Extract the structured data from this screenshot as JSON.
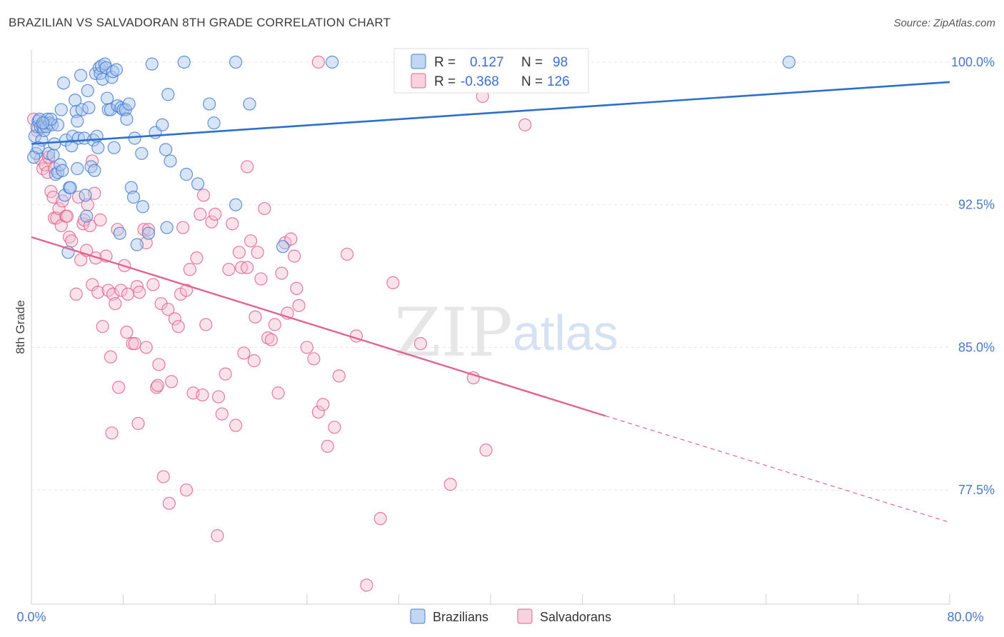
{
  "header": {
    "title": "BRAZILIAN VS SALVADORAN 8TH GRADE CORRELATION CHART",
    "source": "Source: ZipAtlas.com"
  },
  "watermark": {
    "zip": "ZIP",
    "atlas": "atlas"
  },
  "legend_top": {
    "r_label": "R =",
    "n_label": "N =",
    "rows": [
      {
        "r": "0.127",
        "n": "98",
        "color": "#7aa5e0"
      },
      {
        "r": "-0.368",
        "n": "126",
        "color": "#f0a6bf"
      }
    ]
  },
  "colors": {
    "blue": "#4a7fd0",
    "blue_fill": "#a9c5ee",
    "pink": "#e0648f",
    "pink_fill": "#f5bfd1"
  },
  "chart_data": {
    "type": "scatter",
    "title": "BRAZILIAN VS SALVADORAN 8TH GRADE CORRELATION CHART",
    "xlabel": "",
    "ylabel": "8th Grade",
    "xlim": [
      0,
      80
    ],
    "ylim": [
      71.5,
      100.9
    ],
    "x_tick_labels": [
      "0.0%",
      "80.0%"
    ],
    "y_ticks": [
      {
        "value": 100.0,
        "label": "100.0%"
      },
      {
        "value": 92.5,
        "label": "92.5%"
      },
      {
        "value": 85.0,
        "label": "85.0%"
      },
      {
        "value": 77.5,
        "label": "77.5%"
      }
    ],
    "series": [
      {
        "name": "Brazilians",
        "r": 0.127,
        "n": 98,
        "trend": {
          "x": [
            0,
            80
          ],
          "y": [
            95.7,
            98.95
          ]
        },
        "points": [
          [
            0.3,
            96.1
          ],
          [
            0.4,
            95.2
          ],
          [
            0.5,
            96.6
          ],
          [
            0.6,
            96.9
          ],
          [
            0.7,
            97.0
          ],
          [
            0.8,
            96.6
          ],
          [
            0.9,
            95.9
          ],
          [
            1.0,
            96.6
          ],
          [
            1.1,
            96.4
          ],
          [
            1.2,
            96.8
          ],
          [
            1.3,
            96.6
          ],
          [
            1.4,
            97.0
          ],
          [
            1.5,
            95.2
          ],
          [
            1.6,
            96.8
          ],
          [
            1.8,
            96.7
          ],
          [
            1.9,
            95.1
          ],
          [
            2.1,
            94.1
          ],
          [
            2.3,
            94.2
          ],
          [
            2.3,
            96.7
          ],
          [
            2.5,
            94.6
          ],
          [
            2.6,
            97.5
          ],
          [
            2.7,
            94.3
          ],
          [
            2.8,
            98.9
          ],
          [
            2.9,
            93.0
          ],
          [
            3.0,
            95.9
          ],
          [
            3.2,
            90.0
          ],
          [
            3.3,
            93.4
          ],
          [
            3.4,
            93.4
          ],
          [
            3.5,
            95.6
          ],
          [
            3.6,
            96.1
          ],
          [
            3.8,
            98.0
          ],
          [
            3.9,
            97.4
          ],
          [
            4.0,
            94.4
          ],
          [
            4.1,
            96.0
          ],
          [
            4.3,
            99.3
          ],
          [
            4.4,
            97.5
          ],
          [
            4.6,
            96.0
          ],
          [
            4.7,
            93.0
          ],
          [
            4.8,
            91.9
          ],
          [
            4.9,
            98.5
          ],
          [
            5.0,
            97.6
          ],
          [
            5.2,
            94.5
          ],
          [
            5.4,
            95.9
          ],
          [
            5.5,
            94.3
          ],
          [
            5.6,
            99.4
          ],
          [
            5.7,
            96.1
          ],
          [
            5.8,
            95.5
          ],
          [
            5.9,
            99.7
          ],
          [
            6.0,
            99.4
          ],
          [
            6.1,
            99.8
          ],
          [
            6.2,
            99.1
          ],
          [
            6.4,
            99.9
          ],
          [
            6.5,
            99.7
          ],
          [
            6.6,
            98.1
          ],
          [
            6.7,
            97.5
          ],
          [
            6.9,
            97.5
          ],
          [
            7.0,
            99.2
          ],
          [
            7.1,
            99.5
          ],
          [
            7.2,
            95.5
          ],
          [
            7.4,
            99.6
          ],
          [
            7.5,
            97.7
          ],
          [
            7.7,
            91.0
          ],
          [
            7.8,
            97.6
          ],
          [
            8.0,
            97.5
          ],
          [
            8.2,
            97.5
          ],
          [
            8.3,
            97.0
          ],
          [
            8.5,
            97.8
          ],
          [
            8.7,
            93.4
          ],
          [
            8.9,
            92.9
          ],
          [
            9.0,
            96.0
          ],
          [
            9.2,
            90.4
          ],
          [
            9.6,
            95.2
          ],
          [
            9.7,
            92.4
          ],
          [
            10.2,
            91.0
          ],
          [
            10.5,
            99.9
          ],
          [
            10.8,
            96.3
          ],
          [
            11.4,
            96.7
          ],
          [
            11.7,
            95.4
          ],
          [
            11.8,
            91.3
          ],
          [
            11.9,
            98.3
          ],
          [
            12.1,
            94.8
          ],
          [
            13.3,
            100.0
          ],
          [
            13.5,
            94.1
          ],
          [
            14.5,
            93.6
          ],
          [
            15.5,
            97.8
          ],
          [
            15.9,
            96.8
          ],
          [
            17.8,
            100.0
          ],
          [
            17.8,
            92.5
          ],
          [
            19.0,
            97.8
          ],
          [
            21.9,
            90.3
          ],
          [
            26.2,
            100.0
          ],
          [
            66.0,
            100.0
          ],
          [
            0.2,
            95.0
          ],
          [
            0.6,
            95.5
          ],
          [
            1.7,
            97.0
          ],
          [
            1.0,
            96.8
          ],
          [
            2.0,
            95.7
          ],
          [
            4.0,
            96.9
          ]
        ]
      },
      {
        "name": "Salvadorans",
        "r": -0.368,
        "n": 126,
        "trend": {
          "x": [
            0,
            50
          ],
          "y": [
            90.8,
            81.4
          ]
        },
        "trend_dashed": {
          "x": [
            50,
            80
          ],
          "y": [
            81.4,
            75.8
          ]
        },
        "points": [
          [
            0.2,
            97.0
          ],
          [
            0.5,
            96.4
          ],
          [
            0.8,
            94.9
          ],
          [
            1.0,
            94.4
          ],
          [
            1.2,
            94.6
          ],
          [
            1.4,
            94.2
          ],
          [
            1.7,
            93.2
          ],
          [
            1.9,
            92.9
          ],
          [
            2.0,
            91.8
          ],
          [
            2.2,
            91.8
          ],
          [
            2.4,
            92.3
          ],
          [
            2.6,
            91.4
          ],
          [
            2.7,
            92.7
          ],
          [
            3.0,
            91.9
          ],
          [
            3.1,
            91.9
          ],
          [
            3.3,
            90.8
          ],
          [
            3.5,
            90.6
          ],
          [
            3.9,
            87.8
          ],
          [
            4.1,
            92.9
          ],
          [
            4.3,
            89.6
          ],
          [
            4.5,
            91.5
          ],
          [
            4.6,
            91.7
          ],
          [
            4.8,
            90.1
          ],
          [
            4.9,
            92.5
          ],
          [
            5.1,
            91.4
          ],
          [
            5.3,
            88.3
          ],
          [
            5.5,
            93.1
          ],
          [
            5.6,
            89.7
          ],
          [
            5.8,
            87.9
          ],
          [
            6.0,
            91.7
          ],
          [
            6.2,
            86.1
          ],
          [
            6.5,
            89.8
          ],
          [
            6.7,
            88.0
          ],
          [
            6.9,
            84.5
          ],
          [
            7.1,
            87.8
          ],
          [
            7.3,
            87.3
          ],
          [
            7.5,
            91.2
          ],
          [
            7.6,
            82.9
          ],
          [
            7.8,
            88.0
          ],
          [
            8.1,
            89.3
          ],
          [
            8.3,
            85.8
          ],
          [
            8.4,
            87.8
          ],
          [
            8.8,
            85.2
          ],
          [
            9.0,
            85.2
          ],
          [
            9.2,
            88.2
          ],
          [
            9.4,
            87.9
          ],
          [
            9.8,
            91.2
          ],
          [
            10.0,
            90.5
          ],
          [
            10.2,
            91.2
          ],
          [
            10.6,
            88.3
          ],
          [
            10.9,
            82.9
          ],
          [
            11.1,
            84.1
          ],
          [
            11.3,
            87.3
          ],
          [
            11.5,
            78.2
          ],
          [
            11.9,
            87.0
          ],
          [
            12.2,
            83.2
          ],
          [
            12.5,
            86.5
          ],
          [
            12.8,
            86.1
          ],
          [
            13.0,
            87.8
          ],
          [
            13.2,
            91.3
          ],
          [
            13.5,
            88.0
          ],
          [
            13.8,
            89.1
          ],
          [
            14.1,
            82.6
          ],
          [
            14.4,
            89.7
          ],
          [
            14.7,
            92.0
          ],
          [
            14.9,
            82.5
          ],
          [
            15.2,
            86.2
          ],
          [
            15.7,
            91.6
          ],
          [
            16.0,
            92.0
          ],
          [
            16.3,
            82.4
          ],
          [
            16.6,
            81.5
          ],
          [
            16.9,
            83.6
          ],
          [
            17.2,
            89.1
          ],
          [
            17.5,
            91.5
          ],
          [
            17.8,
            80.9
          ],
          [
            18.1,
            90.0
          ],
          [
            18.3,
            89.2
          ],
          [
            18.5,
            84.7
          ],
          [
            18.8,
            89.2
          ],
          [
            19.1,
            90.6
          ],
          [
            19.4,
            84.3
          ],
          [
            19.7,
            90.0
          ],
          [
            20.0,
            88.6
          ],
          [
            20.3,
            92.3
          ],
          [
            20.6,
            85.5
          ],
          [
            20.9,
            85.4
          ],
          [
            21.2,
            86.2
          ],
          [
            21.5,
            82.6
          ],
          [
            21.8,
            88.9
          ],
          [
            22.1,
            90.5
          ],
          [
            22.3,
            86.8
          ],
          [
            22.6,
            90.7
          ],
          [
            22.9,
            89.8
          ],
          [
            23.1,
            88.1
          ],
          [
            23.3,
            87.2
          ],
          [
            24.0,
            85.0
          ],
          [
            24.6,
            84.4
          ],
          [
            25.0,
            81.6
          ],
          [
            25.4,
            82.0
          ],
          [
            25.8,
            79.8
          ],
          [
            26.4,
            80.8
          ],
          [
            26.8,
            83.5
          ],
          [
            27.5,
            89.9
          ],
          [
            28.3,
            85.6
          ],
          [
            29.2,
            72.5
          ],
          [
            30.4,
            76.0
          ],
          [
            31.5,
            88.4
          ],
          [
            33.9,
            85.2
          ],
          [
            36.5,
            77.8
          ],
          [
            38.5,
            83.4
          ],
          [
            39.3,
            98.2
          ],
          [
            39.6,
            79.6
          ],
          [
            43.0,
            96.7
          ],
          [
            25.0,
            100.0
          ],
          [
            12.0,
            76.8
          ],
          [
            13.5,
            77.5
          ],
          [
            16.2,
            75.1
          ],
          [
            9.3,
            81.0
          ],
          [
            18.8,
            94.5
          ],
          [
            19.5,
            86.6
          ],
          [
            5.3,
            94.8
          ],
          [
            15.0,
            93.0
          ],
          [
            11.0,
            83.0
          ],
          [
            7.0,
            80.5
          ],
          [
            2.0,
            94.4
          ],
          [
            1.5,
            95.0
          ],
          [
            10.0,
            85.0
          ]
        ]
      }
    ]
  },
  "legend_bottom": [
    {
      "label": "Brazilians",
      "color": "#a9c5ee"
    },
    {
      "label": "Salvadorans",
      "color": "#f5bfd1"
    }
  ]
}
